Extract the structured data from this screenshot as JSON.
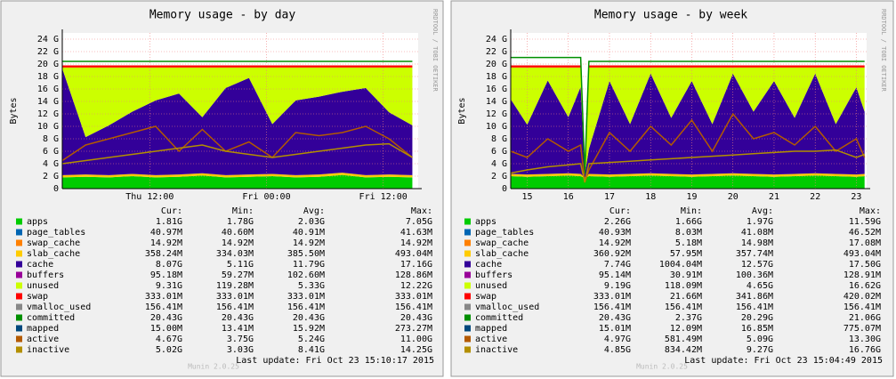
{
  "chart_data": [
    {
      "type": "area",
      "title": "Memory usage - by day",
      "ylabel": "Bytes",
      "side_text": "RRDTOOL / TOBI OETIKER",
      "footer": "Munin 2.0.25",
      "last_update": "Last update: Fri Oct 23 15:10:17 2015",
      "stat_headers": [
        "Cur:",
        "Min:",
        "Avg:",
        "Max:"
      ],
      "x": [
        3,
        5.4,
        7.8,
        10.2,
        12.6,
        15,
        17.4,
        19.8,
        22.2,
        24.6,
        27,
        29.4,
        31.8,
        34.2,
        36.6,
        39
      ],
      "xlim": [
        3,
        39.6
      ],
      "xticks": [
        {
          "value": 12,
          "label": "Thu 12:00"
        },
        {
          "value": 24,
          "label": "Fri 00:00"
        },
        {
          "value": 36,
          "label": "Fri 12:00"
        }
      ],
      "ylim": [
        0,
        25
      ],
      "yticks": [
        0,
        {
          "value": 2,
          "label": "2 G"
        },
        {
          "value": 4,
          "label": "4 G"
        },
        {
          "value": 6,
          "label": "6 G"
        },
        {
          "value": 8,
          "label": "8 G"
        },
        {
          "value": 10,
          "label": "10 G"
        },
        {
          "value": 12,
          "label": "12 G"
        },
        {
          "value": 14,
          "label": "14 G"
        },
        {
          "value": 16,
          "label": "16 G"
        },
        {
          "value": 18,
          "label": "18 G"
        },
        {
          "value": 20,
          "label": "20 G"
        },
        {
          "value": 22,
          "label": "22 G"
        },
        {
          "value": 24,
          "label": "24 G"
        }
      ],
      "grid": true,
      "series": [
        {
          "name": "apps",
          "color": "#00cc00",
          "style": "area",
          "values": [
            1.8,
            1.9,
            1.8,
            2.0,
            1.8,
            1.9,
            2.1,
            1.8,
            1.9,
            2.0,
            1.8,
            1.9,
            2.2,
            1.8,
            1.9,
            1.8
          ],
          "stats": [
            "1.81G",
            "1.78G",
            "2.03G",
            "7.05G"
          ]
        },
        {
          "name": "page_tables",
          "color": "#0066b3",
          "style": "area",
          "stats": [
            "40.97M",
            "40.60M",
            "40.91M",
            "41.63M"
          ]
        },
        {
          "name": "swap_cache",
          "color": "#ff8000",
          "style": "area",
          "stats": [
            "14.92M",
            "14.92M",
            "14.92M",
            "14.92M"
          ]
        },
        {
          "name": "slab_cache",
          "color": "#ffcc00",
          "style": "area",
          "values": [
            0.36,
            0.36,
            0.36,
            0.36,
            0.36,
            0.36,
            0.36,
            0.36,
            0.36,
            0.36,
            0.36,
            0.36,
            0.36,
            0.36,
            0.36,
            0.36
          ],
          "stats": [
            "358.24M",
            "334.03M",
            "385.50M",
            "493.04M"
          ]
        },
        {
          "name": "cache",
          "color": "#330099",
          "style": "area",
          "values": [
            17.1,
            6,
            8,
            10,
            12,
            13,
            9,
            14,
            15.5,
            8,
            12,
            12.5,
            13,
            14,
            10,
            8
          ],
          "stats": [
            "8.07G",
            "5.11G",
            "11.79G",
            "17.16G"
          ]
        },
        {
          "name": "buffers",
          "color": "#990099",
          "style": "area",
          "stats": [
            "95.18M",
            "59.27M",
            "102.60M",
            "128.86M"
          ]
        },
        {
          "name": "unused",
          "color": "#ccff00",
          "style": "area",
          "values": [
            0.19,
            11.19,
            9.29,
            7.09,
            5.29,
            4.19,
            7.99,
            3.29,
            1.69,
            9.09,
            5.29,
            4.69,
            3.89,
            3.29,
            7.19,
            9.29
          ],
          "stats": [
            "9.31G",
            "119.28M",
            "5.33G",
            "12.22G"
          ]
        },
        {
          "name": "swap",
          "color": "#ff0000",
          "style": "area",
          "values": [
            0.33,
            0.33,
            0.33,
            0.33,
            0.33,
            0.33,
            0.33,
            0.33,
            0.33,
            0.33,
            0.33,
            0.33,
            0.33,
            0.33,
            0.33,
            0.33
          ],
          "stats": [
            "333.01M",
            "333.01M",
            "333.01M",
            "333.01M"
          ]
        },
        {
          "name": "vmalloc_used",
          "color": "#888888",
          "style": "line",
          "stats": [
            "156.41M",
            "156.41M",
            "156.41M",
            "156.41M"
          ]
        },
        {
          "name": "committed",
          "color": "#008f00",
          "style": "line",
          "values": [
            20.43,
            20.43,
            20.43,
            20.43,
            20.43,
            20.43,
            20.43,
            20.43,
            20.43,
            20.43,
            20.43,
            20.43,
            20.43,
            20.43,
            20.43,
            20.43
          ],
          "stats": [
            "20.43G",
            "20.43G",
            "20.43G",
            "20.43G"
          ]
        },
        {
          "name": "mapped",
          "color": "#00487d",
          "style": "line",
          "stats": [
            "15.00M",
            "13.41M",
            "15.92M",
            "273.27M"
          ]
        },
        {
          "name": "active",
          "color": "#b35a00",
          "style": "line",
          "values": [
            4.5,
            7,
            8,
            9,
            10,
            6,
            9.5,
            6,
            7.5,
            5,
            9,
            8.5,
            9,
            10,
            8,
            5
          ],
          "stats": [
            "4.67G",
            "3.75G",
            "5.24G",
            "11.00G"
          ]
        },
        {
          "name": "inactive",
          "color": "#b38f00",
          "style": "line",
          "values": [
            4,
            4.5,
            5,
            5.5,
            6,
            6.5,
            7,
            6,
            5.5,
            5,
            5.5,
            6,
            6.5,
            7,
            7.2,
            5
          ],
          "stats": [
            "5.02G",
            "3.03G",
            "8.41G",
            "14.25G"
          ]
        }
      ]
    },
    {
      "type": "area",
      "title": "Memory usage - by week",
      "ylabel": "Bytes",
      "side_text": "RRDTOOL / TOBI OETIKER",
      "footer": "Munin 2.0.25",
      "last_update": "Last update: Fri Oct 23 15:04:49 2015",
      "stat_headers": [
        "Cur:",
        "Min:",
        "Avg:",
        "Max:"
      ],
      "x": [
        14.6,
        15,
        15.5,
        16,
        16.3,
        16.4,
        16.5,
        17,
        17.5,
        18,
        18.5,
        19,
        19.5,
        20,
        20.5,
        21,
        21.5,
        22,
        22.5,
        23,
        23.2
      ],
      "xlim": [
        14.6,
        23.25
      ],
      "xticks": [
        15,
        16,
        17,
        18,
        19,
        20,
        21,
        22,
        23
      ],
      "ylim": [
        0,
        25
      ],
      "yticks": [
        0,
        {
          "value": 2,
          "label": "2 G"
        },
        {
          "value": 4,
          "label": "4 G"
        },
        {
          "value": 6,
          "label": "6 G"
        },
        {
          "value": 8,
          "label": "8 G"
        },
        {
          "value": 10,
          "label": "10 G"
        },
        {
          "value": 12,
          "label": "12 G"
        },
        {
          "value": 14,
          "label": "14 G"
        },
        {
          "value": 16,
          "label": "16 G"
        },
        {
          "value": 18,
          "label": "18 G"
        },
        {
          "value": 20,
          "label": "20 G"
        },
        {
          "value": 22,
          "label": "22 G"
        },
        {
          "value": 24,
          "label": "24 G"
        }
      ],
      "grid": true,
      "series": [
        {
          "name": "apps",
          "color": "#00cc00",
          "style": "area",
          "values": [
            2.0,
            1.9,
            2.0,
            2.1,
            2.0,
            1.7,
            2.0,
            1.9,
            2.0,
            2.1,
            2.0,
            1.9,
            2.0,
            2.1,
            2.0,
            1.9,
            2.0,
            2.1,
            2.0,
            1.9,
            2.0
          ],
          "stats": [
            "2.26G",
            "1.66G",
            "1.97G",
            "11.59G"
          ]
        },
        {
          "name": "page_tables",
          "color": "#0066b3",
          "style": "area",
          "stats": [
            "40.93M",
            "8.03M",
            "41.08M",
            "46.52M"
          ]
        },
        {
          "name": "swap_cache",
          "color": "#ff8000",
          "style": "area",
          "stats": [
            "14.92M",
            "5.18M",
            "14.98M",
            "17.08M"
          ]
        },
        {
          "name": "slab_cache",
          "color": "#ffcc00",
          "style": "area",
          "values": [
            0.36,
            0.36,
            0.36,
            0.36,
            0.36,
            0.06,
            0.36,
            0.36,
            0.36,
            0.36,
            0.36,
            0.36,
            0.36,
            0.36,
            0.36,
            0.36,
            0.36,
            0.36,
            0.36,
            0.36,
            0.36
          ],
          "stats": [
            "360.92M",
            "57.95M",
            "357.74M",
            "493.04M"
          ]
        },
        {
          "name": "cache",
          "color": "#330099",
          "style": "area",
          "values": [
            12,
            8,
            15,
            9,
            14,
            0.5,
            4,
            15,
            8,
            16,
            9,
            15,
            8,
            16,
            10,
            15,
            9,
            16,
            8,
            14,
            10
          ],
          "stats": [
            "7.74G",
            "1004.04M",
            "12.57G",
            "17.50G"
          ]
        },
        {
          "name": "buffers",
          "color": "#990099",
          "style": "area",
          "stats": [
            "95.14M",
            "30.91M",
            "100.36M",
            "128.91M"
          ]
        },
        {
          "name": "unused",
          "color": "#ccff00",
          "style": "area",
          "values": [
            5.09,
            9.19,
            2.09,
            7.99,
            3.09,
            0.3,
            13.09,
            2.19,
            9.09,
            0.99,
            8.09,
            2.19,
            9.09,
            0.99,
            7.09,
            2.19,
            8.09,
            0.99,
            9.09,
            3.19,
            7.09
          ],
          "stats": [
            "9.19G",
            "118.09M",
            "4.65G",
            "16.62G"
          ]
        },
        {
          "name": "swap",
          "color": "#ff0000",
          "style": "area",
          "values": [
            0.33,
            0.33,
            0.33,
            0.33,
            0.33,
            0.02,
            0.33,
            0.33,
            0.33,
            0.33,
            0.33,
            0.33,
            0.33,
            0.33,
            0.33,
            0.33,
            0.33,
            0.33,
            0.33,
            0.33,
            0.33
          ],
          "stats": [
            "333.01M",
            "21.66M",
            "341.86M",
            "420.02M"
          ]
        },
        {
          "name": "vmalloc_used",
          "color": "#888888",
          "style": "line",
          "stats": [
            "156.41M",
            "156.41M",
            "156.41M",
            "156.41M"
          ]
        },
        {
          "name": "committed",
          "color": "#008f00",
          "style": "line",
          "values": [
            21.06,
            21.06,
            21.06,
            21.06,
            21.06,
            2.37,
            20.43,
            20.43,
            20.43,
            20.43,
            20.43,
            20.43,
            20.43,
            20.43,
            20.43,
            20.43,
            20.43,
            20.43,
            20.43,
            20.43,
            20.43
          ],
          "stats": [
            "20.43G",
            "2.37G",
            "20.29G",
            "21.06G"
          ]
        },
        {
          "name": "mapped",
          "color": "#00487d",
          "style": "line",
          "stats": [
            "15.01M",
            "12.09M",
            "16.85M",
            "775.07M"
          ]
        },
        {
          "name": "active",
          "color": "#b35a00",
          "style": "line",
          "values": [
            6,
            5,
            8,
            6,
            7,
            1,
            3,
            9,
            6,
            10,
            7,
            11,
            6,
            12,
            8,
            9,
            7,
            10,
            6,
            8,
            5
          ],
          "stats": [
            "4.97G",
            "581.49M",
            "5.09G",
            "13.30G"
          ]
        },
        {
          "name": "inactive",
          "color": "#b38f00",
          "style": "line",
          "values": [
            2.5,
            3,
            3.5,
            3.8,
            4,
            1,
            4,
            4.2,
            4.4,
            4.6,
            4.8,
            5,
            5.2,
            5.4,
            5.6,
            5.8,
            6,
            6,
            6.2,
            5,
            5.5
          ],
          "stats": [
            "4.85G",
            "834.42M",
            "9.27G",
            "16.76G"
          ]
        }
      ]
    }
  ]
}
